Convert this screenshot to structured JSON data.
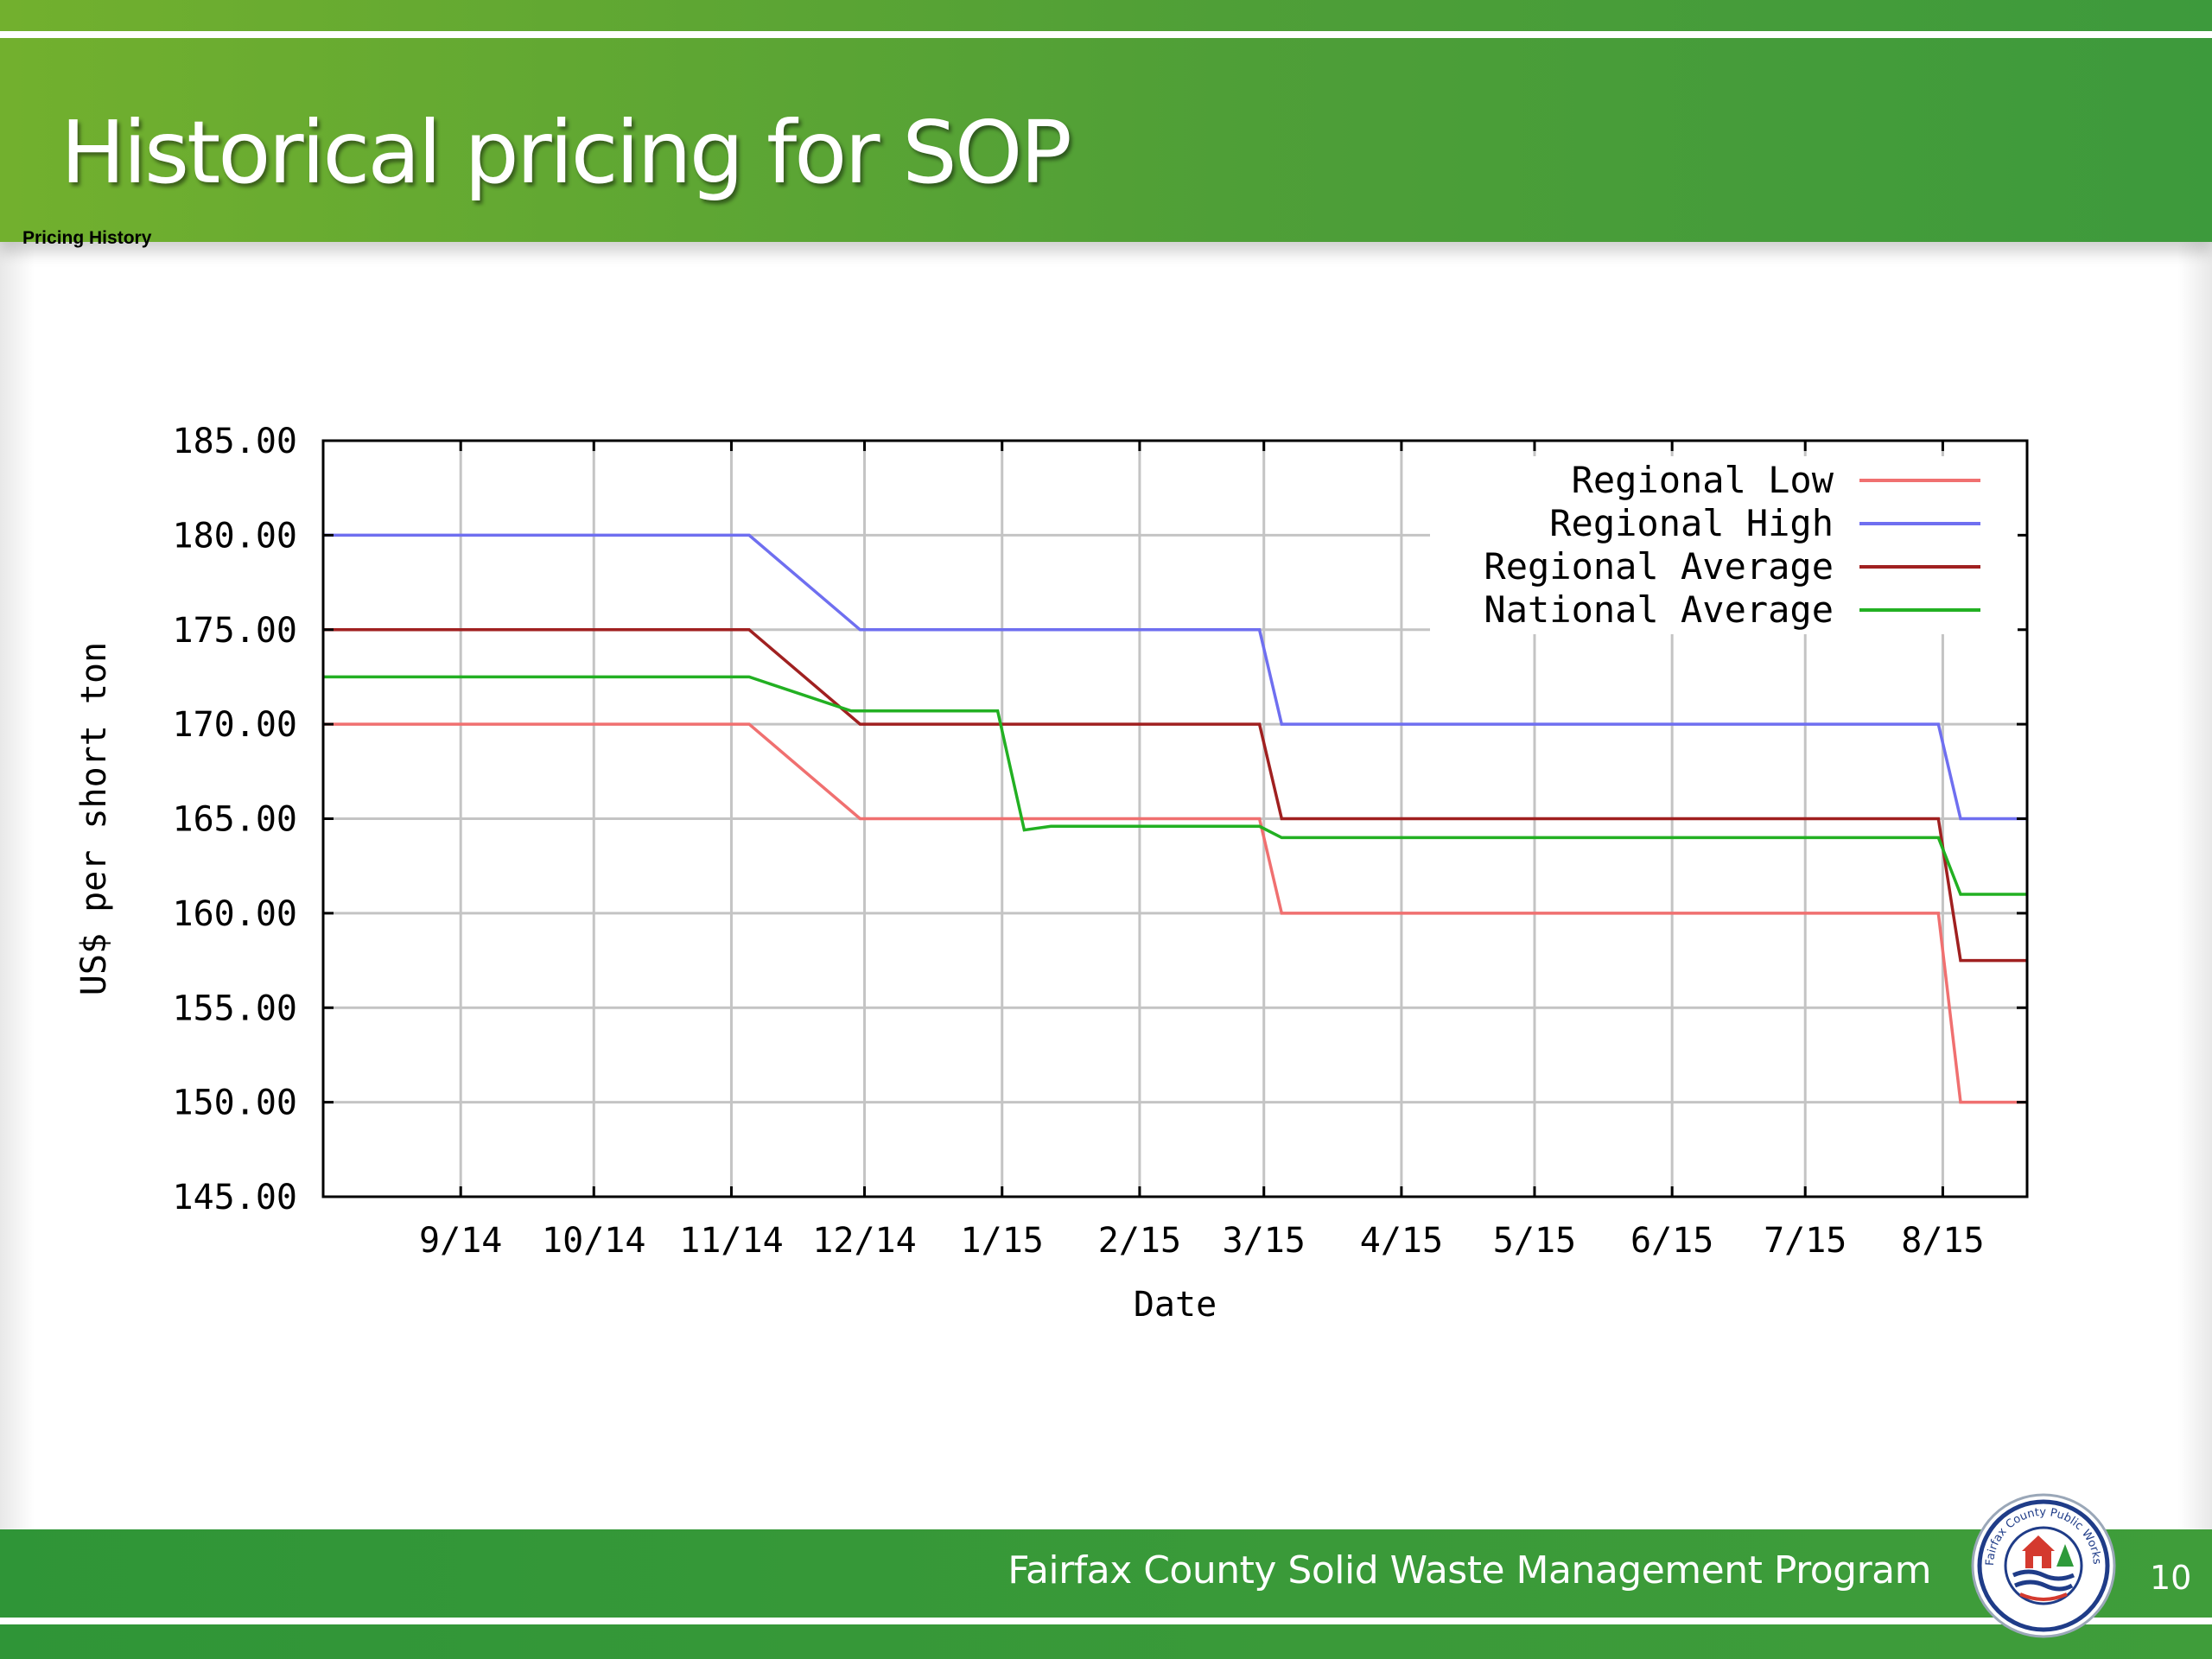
{
  "slide": {
    "title": "Historical pricing for SOP",
    "subtitle": "Pricing History",
    "footer_text": "Fairfax County Solid Waste Management Program",
    "page_number": "10",
    "logo": {
      "icon": "fairfax-county-public-works-seal-icon",
      "text": "Fairfax County Public Works and Environmental Services"
    },
    "colors": {
      "header_green_left": "#72b02e",
      "header_green_right": "#3d9a3c",
      "footer_green": "#3a9a39"
    }
  },
  "chart_data": {
    "type": "line",
    "xlabel": "Date",
    "ylabel": "US$ per short ton",
    "xlim": [
      "2014-08-01",
      "2015-08-20"
    ],
    "ylim": [
      145,
      185
    ],
    "y_ticks": [
      145,
      150,
      155,
      160,
      165,
      170,
      175,
      180,
      185
    ],
    "y_tick_labels": [
      "145.00",
      "150.00",
      "155.00",
      "160.00",
      "165.00",
      "170.00",
      "175.00",
      "180.00",
      "185.00"
    ],
    "x_ticks": [
      "2014-09-01",
      "2014-10-01",
      "2014-11-01",
      "2014-12-01",
      "2015-01-01",
      "2015-02-01",
      "2015-03-01",
      "2015-04-01",
      "2015-05-01",
      "2015-06-01",
      "2015-07-01",
      "2015-08-01"
    ],
    "x_tick_labels": [
      "9/14",
      "10/14",
      "11/14",
      "12/14",
      "1/15",
      "2/15",
      "3/15",
      "4/15",
      "5/15",
      "6/15",
      "7/15",
      "8/15"
    ],
    "grid": true,
    "legend_position": "top-right",
    "series": [
      {
        "name": "Regional Low",
        "color": "#f07070",
        "x": [
          "2014-08-01",
          "2014-11-05",
          "2014-11-30",
          "2015-02-28",
          "2015-03-05",
          "2015-07-31",
          "2015-08-05",
          "2015-08-20"
        ],
        "values": [
          170,
          170,
          165,
          165,
          160,
          160,
          150,
          150
        ]
      },
      {
        "name": "Regional High",
        "color": "#6f6ff0",
        "x": [
          "2014-08-01",
          "2014-11-05",
          "2014-11-30",
          "2015-02-28",
          "2015-03-05",
          "2015-07-31",
          "2015-08-05",
          "2015-08-20"
        ],
        "values": [
          180,
          180,
          175,
          175,
          170,
          170,
          165,
          165
        ]
      },
      {
        "name": "Regional Average",
        "color": "#a02020",
        "x": [
          "2014-08-01",
          "2014-11-05",
          "2014-11-30",
          "2015-02-28",
          "2015-03-05",
          "2015-07-31",
          "2015-08-05",
          "2015-08-20"
        ],
        "values": [
          175,
          175,
          170,
          170,
          165,
          165,
          157.5,
          157.5
        ]
      },
      {
        "name": "National Average",
        "color": "#22b022",
        "x": [
          "2014-08-01",
          "2014-11-05",
          "2014-11-28",
          "2014-12-31",
          "2015-01-06",
          "2015-01-12",
          "2015-02-28",
          "2015-03-05",
          "2015-07-31",
          "2015-08-05",
          "2015-08-20"
        ],
        "values": [
          172.5,
          172.5,
          170.7,
          170.7,
          164.4,
          164.6,
          164.6,
          164,
          164,
          161,
          161
        ]
      }
    ]
  }
}
